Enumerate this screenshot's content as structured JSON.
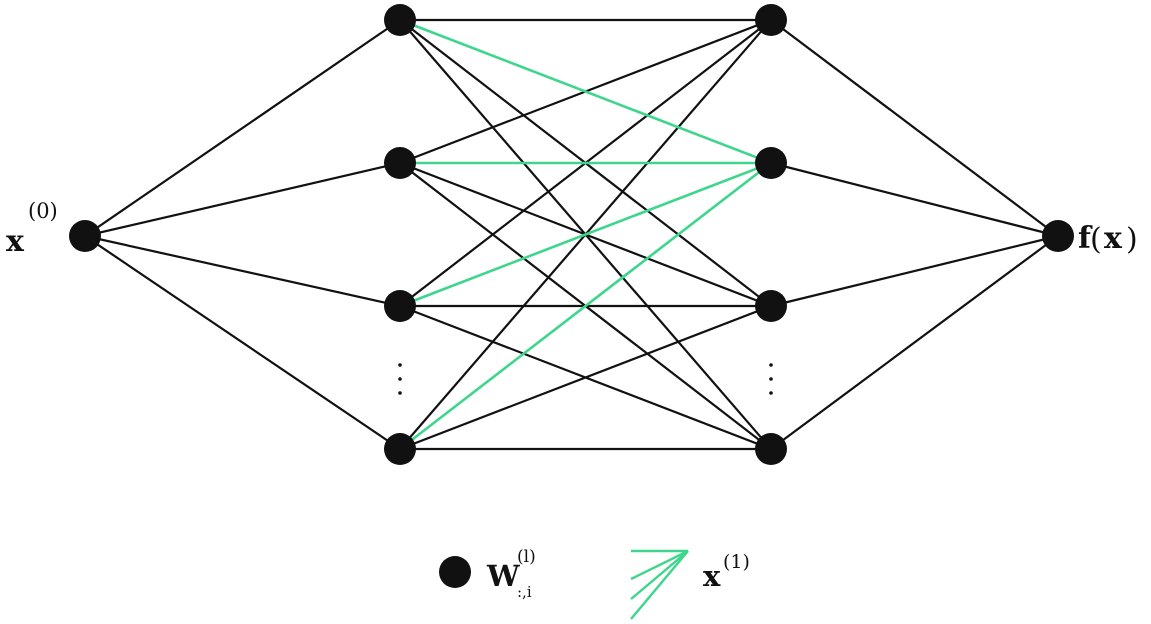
{
  "colors": {
    "node": "#111111",
    "edge": "#111111",
    "highlight": "#3dd68c",
    "background": "#ffffff"
  },
  "labels": {
    "input": {
      "main": "x",
      "sup": "(0)"
    },
    "output": {
      "func": "f",
      "open": "(",
      "arg": "x",
      "close": ")"
    },
    "legend_node": {
      "main": "W",
      "sup": "(l)",
      "sub": ":,i"
    },
    "legend_edge": {
      "main": "x",
      "sup": "(1)"
    }
  },
  "network": {
    "layers": [
      {
        "name": "input",
        "nodes": 1
      },
      {
        "name": "hidden-1",
        "nodes": 4,
        "ellipsis_after": 3
      },
      {
        "name": "hidden-2",
        "nodes": 4,
        "ellipsis_after": 3
      },
      {
        "name": "output",
        "nodes": 1
      }
    ],
    "highlighted_target": {
      "layer": 2,
      "node": 1
    }
  },
  "legend": {
    "node_item": "weight-node",
    "edge_item": "activation-edges"
  }
}
